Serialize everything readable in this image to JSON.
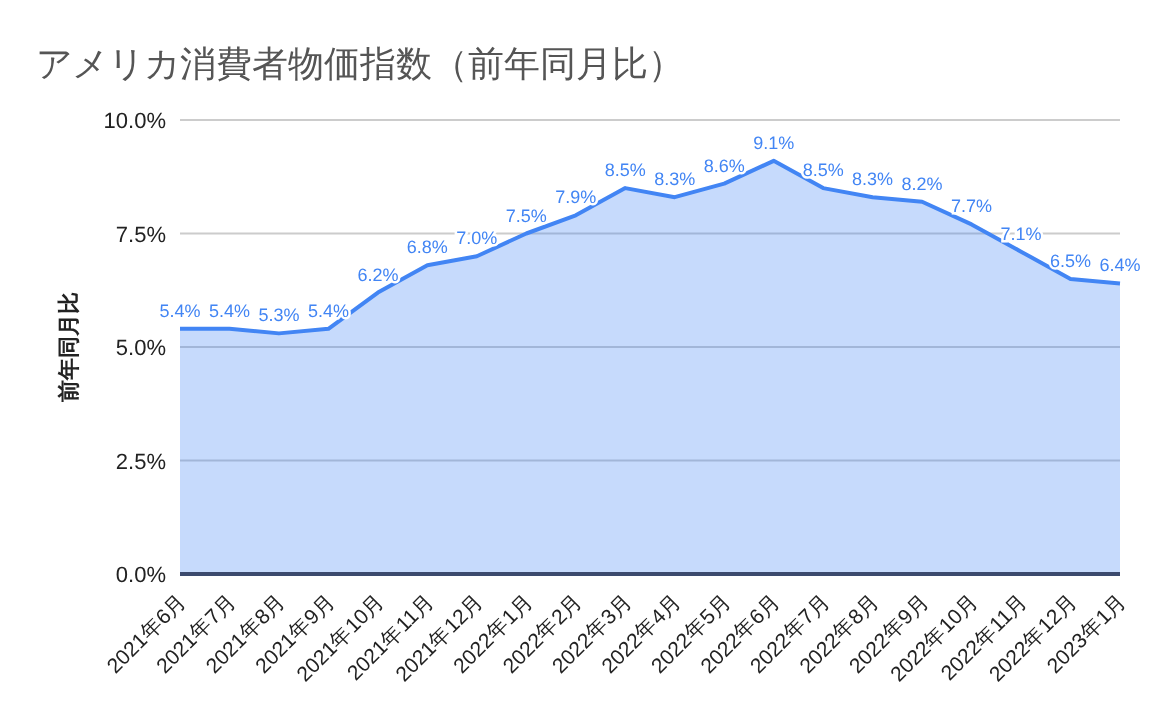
{
  "chart_data": {
    "type": "area",
    "title": "アメリカ消費者物価指数（前年同月比）",
    "ylabel": "前年同月比",
    "categories": [
      "2021年6月",
      "2021年7月",
      "2021年8月",
      "2021年9月",
      "2021年10月",
      "2021年11月",
      "2021年12月",
      "2022年1月",
      "2022年2月",
      "2022年3月",
      "2022年4月",
      "2022年5月",
      "2022年6月",
      "2022年7月",
      "2022年8月",
      "2022年9月",
      "2022年10月",
      "2022年11月",
      "2022年12月",
      "2023年1月"
    ],
    "series": [
      {
        "color": "#4285f4",
        "values": [
          5.4,
          5.4,
          5.3,
          5.4,
          6.2,
          6.8,
          7.0,
          7.5,
          7.9,
          8.5,
          8.3,
          8.6,
          9.1,
          8.5,
          8.3,
          8.2,
          7.7,
          7.1,
          6.5,
          6.4
        ],
        "value_labels": [
          "5.4%",
          "5.4%",
          "5.3%",
          "5.4%",
          "6.2%",
          "6.8%",
          "7.0%",
          "7.5%",
          "7.9%",
          "8.5%",
          "8.3%",
          "8.6%",
          "9.1%",
          "8.5%",
          "8.3%",
          "8.2%",
          "7.7%",
          "7.1%",
          "6.5%",
          "6.4%"
        ]
      }
    ],
    "ylim": [
      0,
      10
    ],
    "yticks": [
      {
        "value": 0,
        "label": "0.0%"
      },
      {
        "value": 2.5,
        "label": "2.5%"
      },
      {
        "value": 5,
        "label": "5.0%"
      },
      {
        "value": 7.5,
        "label": "7.5%"
      },
      {
        "value": 10,
        "label": "10.0%"
      }
    ],
    "grid": "y",
    "marker": "none"
  }
}
